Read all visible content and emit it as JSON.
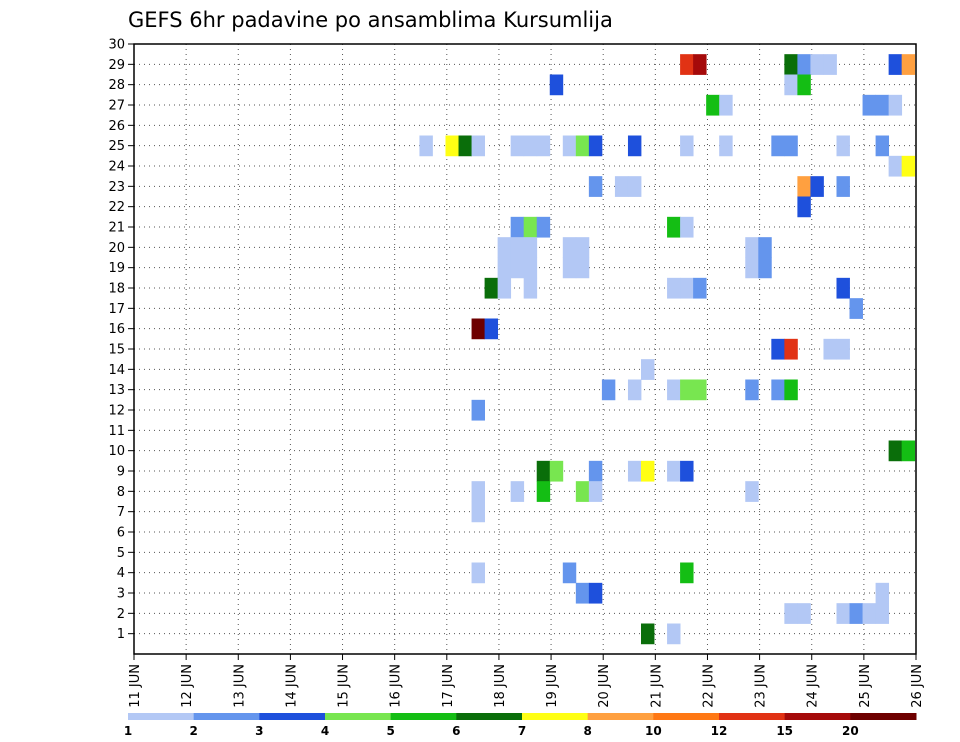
{
  "chart_data": {
    "type": "heatmap",
    "title": "GEFS 6hr padavine po ansamblima Kursumlija",
    "y_ticks": [
      "1",
      "2",
      "3",
      "4",
      "5",
      "6",
      "7",
      "8",
      "9",
      "10",
      "11",
      "12",
      "13",
      "14",
      "15",
      "16",
      "17",
      "18",
      "19",
      "20",
      "21",
      "22",
      "23",
      "24",
      "25",
      "26",
      "27",
      "28",
      "29",
      "30"
    ],
    "x_ticks": [
      "11 JUN",
      "12 JUN",
      "13 JUN",
      "14 JUN",
      "15 JUN",
      "16 JUN",
      "17 JUN",
      "18 JUN",
      "19 JUN",
      "20 JUN",
      "21 JUN",
      "22 JUN",
      "23 JUN",
      "24 JUN",
      "25 JUN",
      "26 JUN"
    ],
    "x_start_day": 11,
    "x_end_day": 26,
    "y_range": [
      0,
      30
    ],
    "grid": true,
    "legend": {
      "placement": "bottom",
      "colors": [
        "#b3c8f5",
        "#6495ed",
        "#1e50dc",
        "#78e650",
        "#14be14",
        "#0a6e0a",
        "#ffff14",
        "#ffa040",
        "#ff7814",
        "#e13214",
        "#a50a0a",
        "#6e0000"
      ],
      "labels": [
        "1",
        "2",
        "3",
        "4",
        "5",
        "6",
        "7",
        "8",
        "10",
        "12",
        "15",
        "20"
      ]
    },
    "cells": [
      {
        "member": 29,
        "day": 21.6,
        "color": "#e13214"
      },
      {
        "member": 29,
        "day": 21.85,
        "color": "#a50a0a"
      },
      {
        "member": 29,
        "day": 23.6,
        "color": "#0a6e0a"
      },
      {
        "member": 29,
        "day": 23.85,
        "color": "#6495ed"
      },
      {
        "member": 29,
        "day": 24.1,
        "color": "#b3c8f5"
      },
      {
        "member": 29,
        "day": 24.35,
        "color": "#b3c8f5"
      },
      {
        "member": 29,
        "day": 25.6,
        "color": "#1e50dc"
      },
      {
        "member": 29,
        "day": 25.85,
        "color": "#ffa040"
      },
      {
        "member": 28,
        "day": 19.1,
        "color": "#1e50dc"
      },
      {
        "member": 28,
        "day": 23.6,
        "color": "#b3c8f5"
      },
      {
        "member": 28,
        "day": 23.85,
        "color": "#14be14"
      },
      {
        "member": 27,
        "day": 22.1,
        "color": "#14be14"
      },
      {
        "member": 27,
        "day": 22.35,
        "color": "#b3c8f5"
      },
      {
        "member": 27,
        "day": 25.1,
        "color": "#6495ed"
      },
      {
        "member": 27,
        "day": 25.35,
        "color": "#6495ed"
      },
      {
        "member": 27,
        "day": 25.6,
        "color": "#b3c8f5"
      },
      {
        "member": 25,
        "day": 16.6,
        "color": "#b3c8f5"
      },
      {
        "member": 25,
        "day": 17.1,
        "color": "#ffff14"
      },
      {
        "member": 25,
        "day": 17.35,
        "color": "#0a6e0a"
      },
      {
        "member": 25,
        "day": 17.6,
        "color": "#b3c8f5"
      },
      {
        "member": 25,
        "day": 18.35,
        "color": "#b3c8f5"
      },
      {
        "member": 25,
        "day": 18.6,
        "color": "#b3c8f5"
      },
      {
        "member": 25,
        "day": 18.85,
        "color": "#b3c8f5"
      },
      {
        "member": 25,
        "day": 19.35,
        "color": "#b3c8f5"
      },
      {
        "member": 25,
        "day": 19.6,
        "color": "#78e650"
      },
      {
        "member": 25,
        "day": 19.85,
        "color": "#1e50dc"
      },
      {
        "member": 25,
        "day": 20.6,
        "color": "#1e50dc"
      },
      {
        "member": 25,
        "day": 21.6,
        "color": "#b3c8f5"
      },
      {
        "member": 25,
        "day": 22.35,
        "color": "#b3c8f5"
      },
      {
        "member": 25,
        "day": 23.35,
        "color": "#6495ed"
      },
      {
        "member": 25,
        "day": 23.6,
        "color": "#6495ed"
      },
      {
        "member": 25,
        "day": 24.6,
        "color": "#b3c8f5"
      },
      {
        "member": 25,
        "day": 25.35,
        "color": "#6495ed"
      },
      {
        "member": 24,
        "day": 25.6,
        "color": "#b3c8f5"
      },
      {
        "member": 24,
        "day": 25.85,
        "color": "#ffff14"
      },
      {
        "member": 23,
        "day": 19.85,
        "color": "#6495ed"
      },
      {
        "member": 23,
        "day": 20.35,
        "color": "#b3c8f5"
      },
      {
        "member": 23,
        "day": 20.6,
        "color": "#b3c8f5"
      },
      {
        "member": 23,
        "day": 23.85,
        "color": "#ffa040"
      },
      {
        "member": 23,
        "day": 24.1,
        "color": "#1e50dc"
      },
      {
        "member": 23,
        "day": 24.6,
        "color": "#6495ed"
      },
      {
        "member": 22,
        "day": 23.85,
        "color": "#1e50dc"
      },
      {
        "member": 21,
        "day": 18.35,
        "color": "#6495ed"
      },
      {
        "member": 21,
        "day": 18.6,
        "color": "#78e650"
      },
      {
        "member": 21,
        "day": 18.85,
        "color": "#6495ed"
      },
      {
        "member": 21,
        "day": 21.35,
        "color": "#14be14"
      },
      {
        "member": 21,
        "day": 21.6,
        "color": "#b3c8f5"
      },
      {
        "member": 20,
        "day": 18.1,
        "color": "#b3c8f5"
      },
      {
        "member": 20,
        "day": 18.35,
        "color": "#b3c8f5"
      },
      {
        "member": 20,
        "day": 18.6,
        "color": "#b3c8f5"
      },
      {
        "member": 20,
        "day": 19.35,
        "color": "#b3c8f5"
      },
      {
        "member": 20,
        "day": 19.6,
        "color": "#b3c8f5"
      },
      {
        "member": 20,
        "day": 22.85,
        "color": "#b3c8f5"
      },
      {
        "member": 20,
        "day": 23.1,
        "color": "#6495ed"
      },
      {
        "member": 19,
        "day": 18.1,
        "color": "#b3c8f5"
      },
      {
        "member": 19,
        "day": 18.35,
        "color": "#b3c8f5"
      },
      {
        "member": 19,
        "day": 18.6,
        "color": "#b3c8f5"
      },
      {
        "member": 19,
        "day": 19.35,
        "color": "#b3c8f5"
      },
      {
        "member": 19,
        "day": 19.6,
        "color": "#b3c8f5"
      },
      {
        "member": 19,
        "day": 22.85,
        "color": "#b3c8f5"
      },
      {
        "member": 19,
        "day": 23.1,
        "color": "#6495ed"
      },
      {
        "member": 18,
        "day": 17.85,
        "color": "#0a6e0a"
      },
      {
        "member": 18,
        "day": 18.1,
        "color": "#b3c8f5"
      },
      {
        "member": 18,
        "day": 18.6,
        "color": "#b3c8f5"
      },
      {
        "member": 18,
        "day": 21.35,
        "color": "#b3c8f5"
      },
      {
        "member": 18,
        "day": 21.6,
        "color": "#b3c8f5"
      },
      {
        "member": 18,
        "day": 21.85,
        "color": "#6495ed"
      },
      {
        "member": 18,
        "day": 24.6,
        "color": "#1e50dc"
      },
      {
        "member": 17,
        "day": 24.85,
        "color": "#6495ed"
      },
      {
        "member": 16,
        "day": 17.6,
        "color": "#6e0000"
      },
      {
        "member": 16,
        "day": 17.85,
        "color": "#1e50dc"
      },
      {
        "member": 15,
        "day": 23.35,
        "color": "#1e50dc"
      },
      {
        "member": 15,
        "day": 23.6,
        "color": "#e13214"
      },
      {
        "member": 15,
        "day": 24.35,
        "color": "#b3c8f5"
      },
      {
        "member": 15,
        "day": 24.6,
        "color": "#b3c8f5"
      },
      {
        "member": 14,
        "day": 20.85,
        "color": "#b3c8f5"
      },
      {
        "member": 13,
        "day": 20.1,
        "color": "#6495ed"
      },
      {
        "member": 13,
        "day": 20.6,
        "color": "#b3c8f5"
      },
      {
        "member": 13,
        "day": 21.35,
        "color": "#b3c8f5"
      },
      {
        "member": 13,
        "day": 21.6,
        "color": "#78e650"
      },
      {
        "member": 13,
        "day": 21.85,
        "color": "#78e650"
      },
      {
        "member": 13,
        "day": 22.85,
        "color": "#6495ed"
      },
      {
        "member": 13,
        "day": 23.35,
        "color": "#6495ed"
      },
      {
        "member": 13,
        "day": 23.6,
        "color": "#14be14"
      },
      {
        "member": 12,
        "day": 17.6,
        "color": "#6495ed"
      },
      {
        "member": 10,
        "day": 25.6,
        "color": "#0a6e0a"
      },
      {
        "member": 10,
        "day": 25.85,
        "color": "#14be14"
      },
      {
        "member": 9,
        "day": 18.85,
        "color": "#0a6e0a"
      },
      {
        "member": 9,
        "day": 19.1,
        "color": "#78e650"
      },
      {
        "member": 9,
        "day": 19.85,
        "color": "#6495ed"
      },
      {
        "member": 9,
        "day": 20.6,
        "color": "#b3c8f5"
      },
      {
        "member": 9,
        "day": 20.85,
        "color": "#ffff14"
      },
      {
        "member": 9,
        "day": 21.35,
        "color": "#b3c8f5"
      },
      {
        "member": 9,
        "day": 21.6,
        "color": "#1e50dc"
      },
      {
        "member": 8,
        "day": 17.6,
        "color": "#b3c8f5"
      },
      {
        "member": 8,
        "day": 18.35,
        "color": "#b3c8f5"
      },
      {
        "member": 8,
        "day": 18.85,
        "color": "#14be14"
      },
      {
        "member": 8,
        "day": 19.6,
        "color": "#78e650"
      },
      {
        "member": 8,
        "day": 19.85,
        "color": "#b3c8f5"
      },
      {
        "member": 8,
        "day": 22.85,
        "color": "#b3c8f5"
      },
      {
        "member": 7,
        "day": 17.6,
        "color": "#b3c8f5"
      },
      {
        "member": 4,
        "day": 17.6,
        "color": "#b3c8f5"
      },
      {
        "member": 4,
        "day": 19.35,
        "color": "#6495ed"
      },
      {
        "member": 4,
        "day": 21.6,
        "color": "#14be14"
      },
      {
        "member": 3,
        "day": 19.6,
        "color": "#6495ed"
      },
      {
        "member": 3,
        "day": 19.85,
        "color": "#1e50dc"
      },
      {
        "member": 3,
        "day": 25.35,
        "color": "#b3c8f5"
      },
      {
        "member": 2,
        "day": 23.6,
        "color": "#b3c8f5"
      },
      {
        "member": 2,
        "day": 23.85,
        "color": "#b3c8f5"
      },
      {
        "member": 2,
        "day": 24.6,
        "color": "#b3c8f5"
      },
      {
        "member": 2,
        "day": 24.85,
        "color": "#6495ed"
      },
      {
        "member": 2,
        "day": 25.1,
        "color": "#b3c8f5"
      },
      {
        "member": 2,
        "day": 25.35,
        "color": "#b3c8f5"
      },
      {
        "member": 1,
        "day": 20.85,
        "color": "#0a6e0a"
      },
      {
        "member": 1,
        "day": 21.35,
        "color": "#b3c8f5"
      }
    ]
  }
}
